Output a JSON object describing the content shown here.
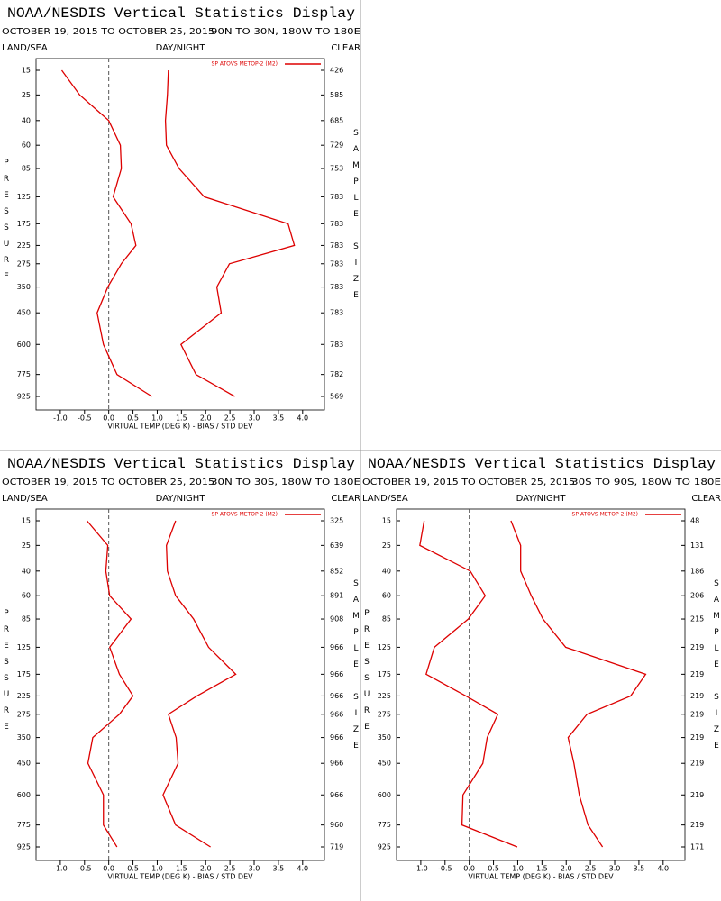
{
  "chart_data": [
    {
      "type": "line",
      "title": "NOAA/NESDIS Vertical Statistics Display",
      "subtitle": "OCTOBER 19, 2015 TO OCTOBER 25, 2015",
      "region": "90N TO 30N, 180W TO 180E",
      "left_label": "LAND/SEA",
      "center_label": "DAY/NIGHT",
      "right_label": "CLEAR",
      "legend": "SP ATOVS METOP-2 (M2)",
      "ylabel": "PRESSURE",
      "y2label": "SAMPLE SIZE",
      "xlabel": "VIRTUAL TEMP (DEG K) - BIAS / STD DEV",
      "categories": [
        15,
        25,
        40,
        60,
        85,
        125,
        175,
        225,
        275,
        350,
        450,
        600,
        775,
        925
      ],
      "sample_size": [
        426,
        585,
        685,
        729,
        753,
        783,
        783,
        783,
        783,
        783,
        783,
        783,
        782,
        569
      ],
      "series": [
        {
          "color": "#dd0000",
          "values": [
            -0.97,
            -0.6,
            0.0,
            0.24,
            0.26,
            0.09,
            0.46,
            0.56,
            0.26,
            -0.02,
            -0.24,
            -0.11,
            0.17,
            0.89
          ]
        },
        {
          "color": "#dd0000",
          "values": [
            1.23,
            1.21,
            1.17,
            1.19,
            1.45,
            1.97,
            3.7,
            3.83,
            2.49,
            2.23,
            2.32,
            1.49,
            1.8,
            2.6
          ]
        }
      ],
      "xlim": [
        -1.5,
        4.45
      ],
      "xticks": [
        {
          "value": -1.0,
          "label": "-1.0"
        },
        {
          "value": -0.5,
          "label": "-0.5"
        },
        {
          "value": 0,
          "label": "0.0"
        },
        {
          "value": 0.5,
          "label": "0.5"
        },
        {
          "value": 1.0,
          "label": "1.0"
        },
        {
          "value": 1.5,
          "label": "1.5"
        },
        {
          "value": 2.0,
          "label": "2.0"
        },
        {
          "value": 2.5,
          "label": "2.5"
        },
        {
          "value": 3.0,
          "label": "3.0"
        },
        {
          "value": 3.5,
          "label": "3.5"
        },
        {
          "value": 4.0,
          "label": "4.0"
        }
      ]
    },
    {
      "type": "line",
      "title": "NOAA/NESDIS Vertical Statistics Display",
      "subtitle": "OCTOBER 19, 2015 TO OCTOBER 25, 2015",
      "region": "30N TO 30S, 180W TO 180E",
      "left_label": "LAND/SEA",
      "center_label": "DAY/NIGHT",
      "right_label": "CLEAR",
      "legend": "SP ATOVS METOP-2 (M2)",
      "ylabel": "PRESSURE",
      "y2label": "SAMPLE SIZE",
      "xlabel": "VIRTUAL TEMP (DEG K) - BIAS / STD DEV",
      "categories": [
        15,
        25,
        40,
        60,
        85,
        125,
        175,
        225,
        275,
        350,
        450,
        600,
        775,
        925
      ],
      "sample_size": [
        325,
        639,
        852,
        891,
        908,
        966,
        966,
        966,
        966,
        966,
        966,
        966,
        960,
        719
      ],
      "series": [
        {
          "color": "#dd0000",
          "values": [
            -0.45,
            -0.02,
            -0.06,
            0.02,
            0.46,
            0.02,
            0.22,
            0.5,
            0.22,
            -0.33,
            -0.43,
            -0.11,
            -0.11,
            0.17
          ]
        },
        {
          "color": "#dd0000",
          "values": [
            1.38,
            1.19,
            1.21,
            1.38,
            1.75,
            2.06,
            2.62,
            1.82,
            1.23,
            1.39,
            1.43,
            1.12,
            1.38,
            2.1
          ]
        }
      ],
      "xlim": [
        -1.5,
        4.45
      ],
      "xticks": [
        {
          "value": -1.0,
          "label": "-1.0"
        },
        {
          "value": -0.5,
          "label": "-0.5"
        },
        {
          "value": 0,
          "label": "0.0"
        },
        {
          "value": 0.5,
          "label": "0.5"
        },
        {
          "value": 1.0,
          "label": "1.0"
        },
        {
          "value": 1.5,
          "label": "1.5"
        },
        {
          "value": 2.0,
          "label": "2.0"
        },
        {
          "value": 2.5,
          "label": "2.5"
        },
        {
          "value": 3.0,
          "label": "3.0"
        },
        {
          "value": 3.5,
          "label": "3.5"
        },
        {
          "value": 4.0,
          "label": "4.0"
        }
      ]
    },
    {
      "type": "line",
      "title": "NOAA/NESDIS Vertical Statistics Display",
      "subtitle": "OCTOBER 19, 2015 TO OCTOBER 25, 2015",
      "region": "30S TO 90S, 180W TO 180E",
      "left_label": "LAND/SEA",
      "center_label": "DAY/NIGHT",
      "right_label": "CLEAR",
      "legend": "SP ATOVS METOP-2 (M2)",
      "ylabel": "PRESSURE",
      "y2label": "SAMPLE SIZE",
      "xlabel": "VIRTUAL TEMP (DEG K) - BIAS / STD DEV",
      "categories": [
        15,
        25,
        40,
        60,
        85,
        125,
        175,
        225,
        275,
        350,
        450,
        600,
        775,
        925
      ],
      "sample_size": [
        48,
        131,
        186,
        206,
        215,
        219,
        219,
        219,
        219,
        219,
        219,
        219,
        219,
        171
      ],
      "series": [
        {
          "color": "#dd0000",
          "values": [
            -0.93,
            -1.02,
            0.02,
            0.33,
            -0.02,
            -0.72,
            -0.89,
            -0.07,
            0.59,
            0.37,
            0.28,
            -0.13,
            -0.15,
            0.99
          ]
        },
        {
          "color": "#dd0000",
          "values": [
            0.86,
            1.06,
            1.06,
            1.28,
            1.52,
            1.99,
            3.64,
            3.33,
            2.43,
            2.04,
            2.16,
            2.27,
            2.45,
            2.75
          ]
        }
      ],
      "xlim": [
        -1.5,
        4.45
      ],
      "xticks": [
        {
          "value": -1.0,
          "label": "-1.0"
        },
        {
          "value": -0.5,
          "label": "-0.5"
        },
        {
          "value": 0,
          "label": "0.0"
        },
        {
          "value": 0.5,
          "label": "0.5"
        },
        {
          "value": 1.0,
          "label": "1.0"
        },
        {
          "value": 1.5,
          "label": "1.5"
        },
        {
          "value": 2.0,
          "label": "2.0"
        },
        {
          "value": 2.5,
          "label": "2.5"
        },
        {
          "value": 3.0,
          "label": "3.0"
        },
        {
          "value": 3.5,
          "label": "3.5"
        },
        {
          "value": 4.0,
          "label": "4.0"
        }
      ]
    }
  ]
}
